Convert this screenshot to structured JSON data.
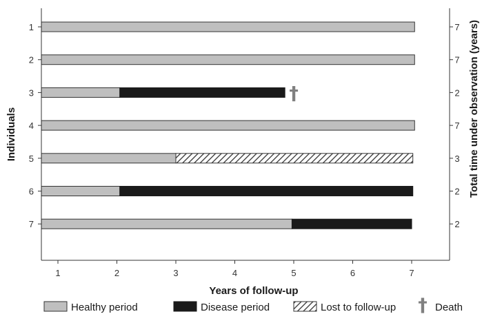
{
  "chart_data": {
    "type": "bar",
    "orientation": "horizontal-stacked",
    "xlabel": "Years of follow-up",
    "ylabel": "Individuals",
    "ylabel_right": "Total time under observation (years)",
    "x_ticks": [
      "1",
      "2",
      "3",
      "4",
      "5",
      "6",
      "7"
    ],
    "xlim": [
      0.72,
      7.65
    ],
    "grid": false,
    "legend_position": "bottom",
    "colors": {
      "healthy": "#bfbfbf",
      "disease": "#1a1a1a",
      "lost": "hatched",
      "death": "#808080"
    },
    "legend": [
      {
        "key": "healthy",
        "label": "Healthy period"
      },
      {
        "key": "disease",
        "label": "Disease period"
      },
      {
        "key": "lost",
        "label": "Lost to follow-up"
      },
      {
        "key": "death",
        "label": "Death",
        "symbol": "†"
      }
    ],
    "individuals": [
      {
        "label": "1",
        "total": "7",
        "segments": [
          {
            "type": "healthy",
            "start": 0.72,
            "end": 7.05
          }
        ],
        "death": false
      },
      {
        "label": "2",
        "total": "7",
        "segments": [
          {
            "type": "healthy",
            "start": 0.72,
            "end": 7.05
          }
        ],
        "death": false
      },
      {
        "label": "3",
        "total": "2",
        "segments": [
          {
            "type": "healthy",
            "start": 0.72,
            "end": 2.05
          },
          {
            "type": "disease",
            "start": 2.05,
            "end": 4.85
          }
        ],
        "death": true,
        "death_at": 4.85
      },
      {
        "label": "4",
        "total": "7",
        "segments": [
          {
            "type": "healthy",
            "start": 0.72,
            "end": 7.05
          }
        ],
        "death": false
      },
      {
        "label": "5",
        "total": "3",
        "segments": [
          {
            "type": "healthy",
            "start": 0.72,
            "end": 3.0
          },
          {
            "type": "lost",
            "start": 3.0,
            "end": 7.02
          }
        ],
        "death": false
      },
      {
        "label": "6",
        "total": "2",
        "segments": [
          {
            "type": "healthy",
            "start": 0.72,
            "end": 2.05
          },
          {
            "type": "disease",
            "start": 2.05,
            "end": 7.02
          }
        ],
        "death": false
      },
      {
        "label": "7",
        "total": "2",
        "segments": [
          {
            "type": "healthy",
            "start": 0.72,
            "end": 4.97
          },
          {
            "type": "disease",
            "start": 4.97,
            "end": 7.0
          }
        ],
        "death": false
      }
    ]
  }
}
